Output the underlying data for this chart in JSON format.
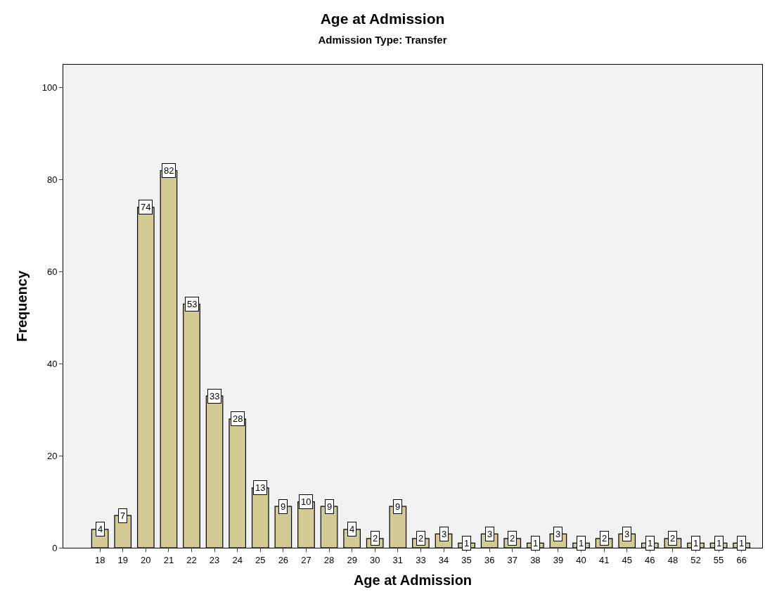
{
  "chart_data": {
    "type": "bar",
    "title": "Age at Admission",
    "subtitle": "Admission Type: Transfer",
    "xlabel": "Age at Admission",
    "ylabel": "Frequency",
    "categories": [
      "18",
      "19",
      "20",
      "21",
      "22",
      "23",
      "24",
      "25",
      "26",
      "27",
      "28",
      "29",
      "30",
      "31",
      "33",
      "34",
      "35",
      "36",
      "37",
      "38",
      "39",
      "40",
      "41",
      "45",
      "46",
      "48",
      "52",
      "55",
      "66"
    ],
    "values": [
      4,
      7,
      74,
      82,
      53,
      33,
      28,
      13,
      9,
      10,
      9,
      4,
      2,
      9,
      2,
      3,
      1,
      3,
      2,
      1,
      3,
      1,
      2,
      3,
      1,
      2,
      1,
      1,
      1
    ],
    "color": "#d3cb93",
    "ylim": [
      0,
      105
    ],
    "yticks": [
      0,
      20,
      40,
      60,
      80,
      100
    ],
    "grid": false,
    "legend": false,
    "data_labels": true
  }
}
